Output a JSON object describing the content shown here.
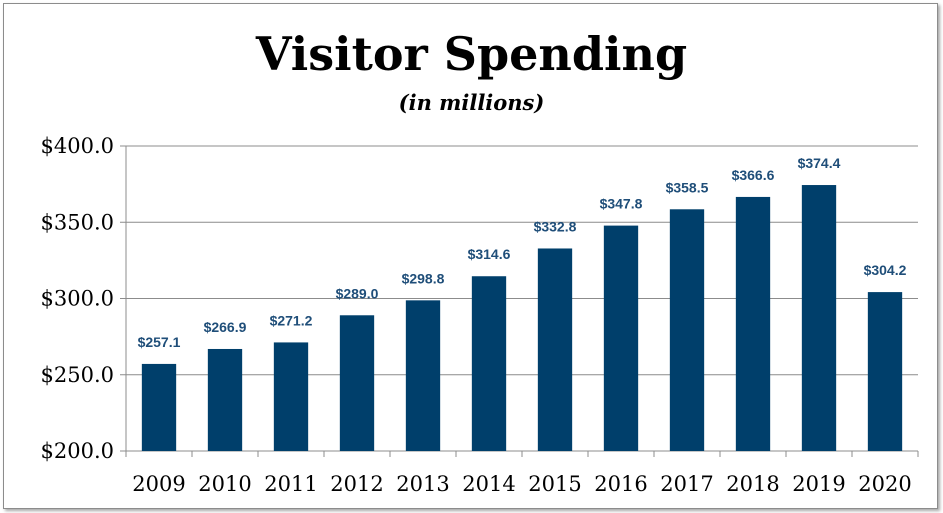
{
  "chart_data": {
    "type": "bar",
    "title": "Visitor Spending",
    "subtitle": "(in millions)",
    "categories": [
      "2009",
      "2010",
      "2011",
      "2012",
      "2013",
      "2014",
      "2015",
      "2016",
      "2017",
      "2018",
      "2019",
      "2020"
    ],
    "values": [
      257.1,
      266.9,
      271.2,
      289.0,
      298.8,
      314.6,
      332.8,
      347.8,
      358.5,
      366.6,
      374.4,
      304.2
    ],
    "data_labels": [
      "$257.1",
      "$266.9",
      "$271.2",
      "$289.0",
      "$298.8",
      "$314.6",
      "$332.8",
      "$347.8",
      "$358.5",
      "$366.6",
      "$374.4",
      "$304.2"
    ],
    "ylim": [
      200,
      400
    ],
    "yticks": [
      200,
      250,
      300,
      350,
      400
    ],
    "ytick_labels": [
      "$200.0",
      "$250.0",
      "$300.0",
      "$350.0",
      "$400.0"
    ],
    "grid": true,
    "xlabel": "",
    "ylabel": "",
    "bar_color": "#003f6b",
    "label_color": "#1f4e79"
  }
}
